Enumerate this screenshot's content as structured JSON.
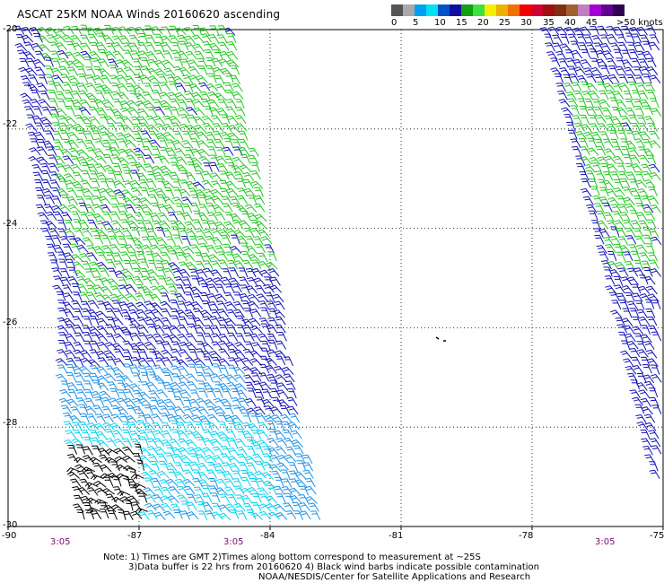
{
  "title": "ASCAT 25KM NOAA Winds 20160620 ascending",
  "colorbar": {
    "colors": [
      "#555555",
      "#a9a9a9",
      "#00a0f0",
      "#00e0f0",
      "#0050c8",
      "#1010a0",
      "#10a010",
      "#40e040",
      "#f0f000",
      "#f0b000",
      "#f07000",
      "#f00000",
      "#d00030",
      "#a01010",
      "#803010",
      "#a06030",
      "#c080c0",
      "#a000d0",
      "#600090",
      "#300050"
    ],
    "labels": [
      "0",
      "5",
      "10",
      "15",
      "20",
      "25",
      "30",
      "35",
      "40",
      "45",
      ">50 knots"
    ]
  },
  "axes": {
    "y_labels": [
      "-20",
      "-22",
      "-24",
      "-26",
      "-28",
      "-30"
    ],
    "x_labels": [
      "-90",
      "-87",
      "-84",
      "-81",
      "-78",
      "-75"
    ],
    "pass_times": [
      "3:05",
      "3:05",
      "3:05"
    ]
  },
  "notes": {
    "line1": "Note: 1) Times are GMT 2)Times along bottom correspond to measurement at ~25S",
    "line2": "3)Data buffer is 22 hrs from 20160620 4) Black wind barbs indicate possible contamination",
    "line3": "NOAA/NESDIS/Center for Satellite Applications and Research"
  },
  "map": {
    "lat_range": [
      -30,
      -20
    ],
    "lon_range": [
      -90,
      -75
    ],
    "barb_colors": {
      "green": "#22c522",
      "blue": "#1010b4",
      "light_blue": "#1e90e6",
      "cyan": "#00d2ee",
      "black": "#000000"
    }
  }
}
